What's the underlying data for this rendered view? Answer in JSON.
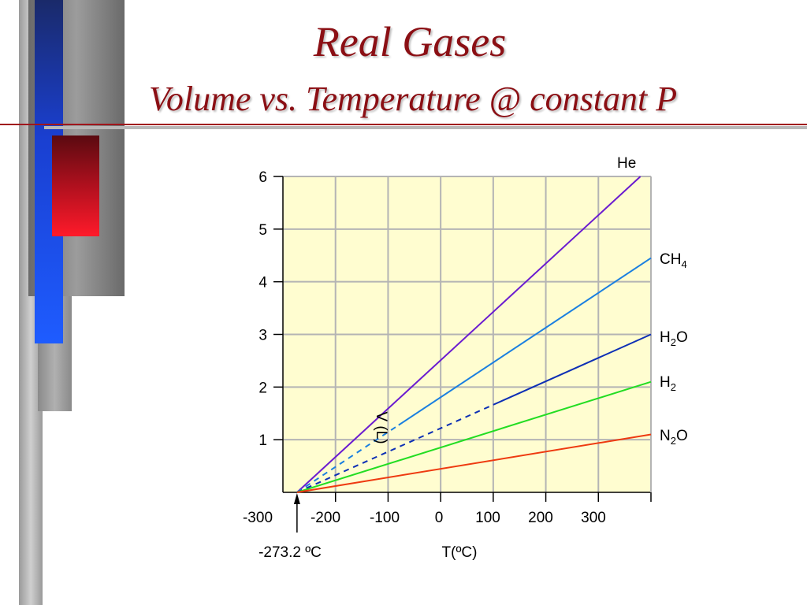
{
  "slide": {
    "title": "Real Gases",
    "subtitle": "Volume vs. Temperature @ constant P",
    "colors": {
      "title": "#8b0f14",
      "plot_background": "#fffdd0",
      "grid": "#b4b4b4"
    }
  },
  "chart_data": {
    "type": "line",
    "title": "",
    "xlabel": "T(ºC)",
    "ylabel": "V (L)",
    "xlim": [
      -300,
      400
    ],
    "ylim": [
      0,
      6
    ],
    "x_ticks": [
      -300,
      -200,
      -100,
      0,
      100,
      200,
      300
    ],
    "y_ticks": [
      1,
      2,
      3,
      4,
      5,
      6
    ],
    "grid": true,
    "annotation": {
      "text": "-273.2 ºC",
      "x": -273.2
    },
    "series": [
      {
        "name": "He",
        "base": "He",
        "sub": "",
        "tail": "",
        "color": "#6a1bd0",
        "x_start": -273.2,
        "x_end": 380,
        "y_end": 6.0,
        "dashed_until": null
      },
      {
        "name": "CH4",
        "base": "CH",
        "sub": "4",
        "tail": "",
        "color": "#1a7fe0",
        "x_start": -273.2,
        "x_end": 400,
        "y_end": 4.45,
        "dashed_until": -80
      },
      {
        "name": "H2O",
        "base": "H",
        "sub": "2",
        "tail": "O",
        "color": "#0d2fb5",
        "x_start": -273.2,
        "x_end": 400,
        "y_end": 3.0,
        "dashed_until": 100
      },
      {
        "name": "H2",
        "base": "H",
        "sub": "2",
        "tail": "",
        "color": "#22dd22",
        "x_start": -273.2,
        "x_end": 400,
        "y_end": 2.1,
        "dashed_until": null
      },
      {
        "name": "N2O",
        "base": "N",
        "sub": "2",
        "tail": "O",
        "color": "#ee3a10",
        "x_start": -273.2,
        "x_end": 400,
        "y_end": 1.1,
        "dashed_until": null
      }
    ]
  }
}
